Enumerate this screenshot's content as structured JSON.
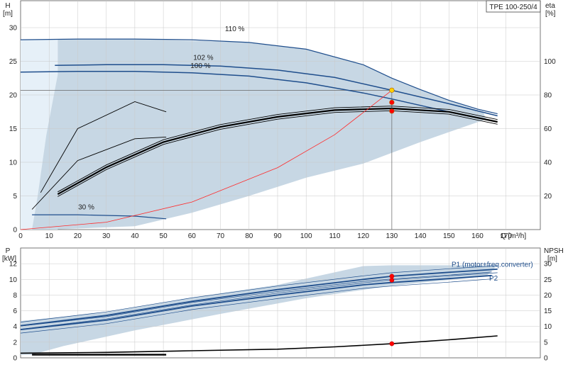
{
  "model_label": "TPE 100-250/4",
  "chart_data": [
    {
      "type": "line",
      "panel": "top",
      "y_left_label": [
        "H",
        "[m]"
      ],
      "y_right_label": [
        "eta",
        "[%]"
      ],
      "x_label": "Q [m³/h]",
      "x_ticks": [
        "0",
        "10",
        "20",
        "30",
        "40",
        "50",
        "60",
        "70",
        "80",
        "90",
        "100",
        "110",
        "120",
        "130",
        "140",
        "150",
        "160",
        "170"
      ],
      "y_left_ticks": [
        "0",
        "5",
        "10",
        "15",
        "20",
        "25",
        "30"
      ],
      "y_right_ticks": [
        "20",
        "40",
        "60",
        "80",
        "100"
      ],
      "xlim": [
        0,
        182
      ],
      "ylim_left": [
        0,
        34
      ],
      "ylim_right": [
        0,
        136
      ],
      "grid": true,
      "duty_point": {
        "q": 130,
        "h": 20.7
      },
      "curve_labels": [
        "110 %",
        "102 %",
        "100 %",
        "30 %"
      ],
      "series": [
        {
          "name": "110 %",
          "x": [
            0,
            20,
            40,
            60,
            80,
            100,
            120,
            130,
            140,
            150,
            160,
            167
          ],
          "y": [
            28.2,
            28.3,
            28.3,
            28.2,
            27.8,
            26.8,
            24.5,
            22.5,
            20.8,
            19.2,
            17.9,
            17.2
          ]
        },
        {
          "name": "102 %",
          "x": [
            12,
            30,
            50,
            70,
            90,
            110,
            130,
            150,
            167
          ],
          "y": [
            24.4,
            24.5,
            24.5,
            24.3,
            23.7,
            22.6,
            20.7,
            18.7,
            16.9
          ]
        },
        {
          "name": "100 %",
          "x": [
            0,
            20,
            40,
            60,
            80,
            100,
            120,
            130,
            150,
            165
          ],
          "y": [
            23.4,
            23.5,
            23.5,
            23.3,
            22.8,
            21.8,
            20.3,
            19.4,
            17.5,
            16.2
          ]
        },
        {
          "name": "30 %",
          "x": [
            4,
            20,
            40,
            51
          ],
          "y": [
            2.2,
            2.2,
            2.0,
            1.6
          ]
        },
        {
          "name": "eta",
          "x": [
            13,
            30,
            50,
            70,
            90,
            110,
            130,
            150,
            167
          ],
          "y": [
            21,
            37,
            52,
            61,
            67,
            71,
            72,
            70,
            64
          ]
        },
        {
          "name": "eta-low",
          "x": [
            4,
            20,
            40,
            51
          ],
          "y": [
            12,
            41,
            54,
            55
          ]
        },
        {
          "name": "eta-partial",
          "x": [
            7,
            20,
            40,
            51
          ],
          "y": [
            22,
            60,
            76,
            70
          ]
        },
        {
          "name": "system",
          "x": [
            0,
            30,
            60,
            90,
            110,
            130
          ],
          "y": [
            0,
            1.1,
            4.1,
            9.2,
            14.1,
            20.7
          ]
        }
      ],
      "points": [
        {
          "x": 130,
          "y": 20.7,
          "color": "#ffd000"
        },
        {
          "x": 130,
          "y": 18.9,
          "color": "#ff0000"
        },
        {
          "x": 130,
          "y": 17.6,
          "color": "#ff0000"
        }
      ]
    },
    {
      "type": "line",
      "panel": "bottom",
      "y_left_label": [
        "P",
        "[kW]"
      ],
      "y_right_label": [
        "NPSH",
        "[m]"
      ],
      "y_left_ticks": [
        "0",
        "2",
        "4",
        "6",
        "8",
        "10",
        "12"
      ],
      "y_right_ticks": [
        "0",
        "5",
        "10",
        "15",
        "20",
        "25",
        "30"
      ],
      "xlim": [
        0,
        182
      ],
      "ylim_left": [
        0,
        14
      ],
      "grid": true,
      "curve_labels": [
        "P1 (motor+freq.converter)",
        "P2"
      ],
      "series": [
        {
          "name": "P1 (motor+freq.converter)",
          "x": [
            0,
            30,
            60,
            90,
            120,
            130,
            150,
            167
          ],
          "y": [
            4.1,
            5.4,
            7.2,
            8.7,
            10.0,
            10.4,
            10.9,
            11.3
          ]
        },
        {
          "name": "P2",
          "x": [
            0,
            30,
            60,
            90,
            120,
            130,
            150,
            165
          ],
          "y": [
            3.6,
            4.8,
            6.6,
            8.0,
            9.3,
            9.6,
            10.1,
            10.5
          ]
        },
        {
          "name": "NPSH",
          "x": [
            0,
            30,
            60,
            90,
            110,
            130,
            150,
            167
          ],
          "y": [
            0.6,
            0.7,
            0.9,
            1.1,
            1.4,
            1.8,
            2.3,
            2.8
          ]
        },
        {
          "name": "P1-low",
          "x": [
            4,
            51
          ],
          "y": [
            0.4,
            0.4
          ]
        }
      ],
      "points": [
        {
          "x": 130,
          "y": 10.4,
          "color": "#ff0000"
        },
        {
          "x": 130,
          "y": 9.9,
          "color": "#ff0000"
        },
        {
          "x": 130,
          "y": 1.8,
          "color": "#ff0000"
        }
      ]
    }
  ],
  "colors": {
    "grid": "#c8c8c8",
    "region": "#c7d7e4",
    "region_light": "#e6f0f8",
    "curve": "#1f4e8c",
    "eta": "#000000",
    "system": "#ff2a2a"
  }
}
